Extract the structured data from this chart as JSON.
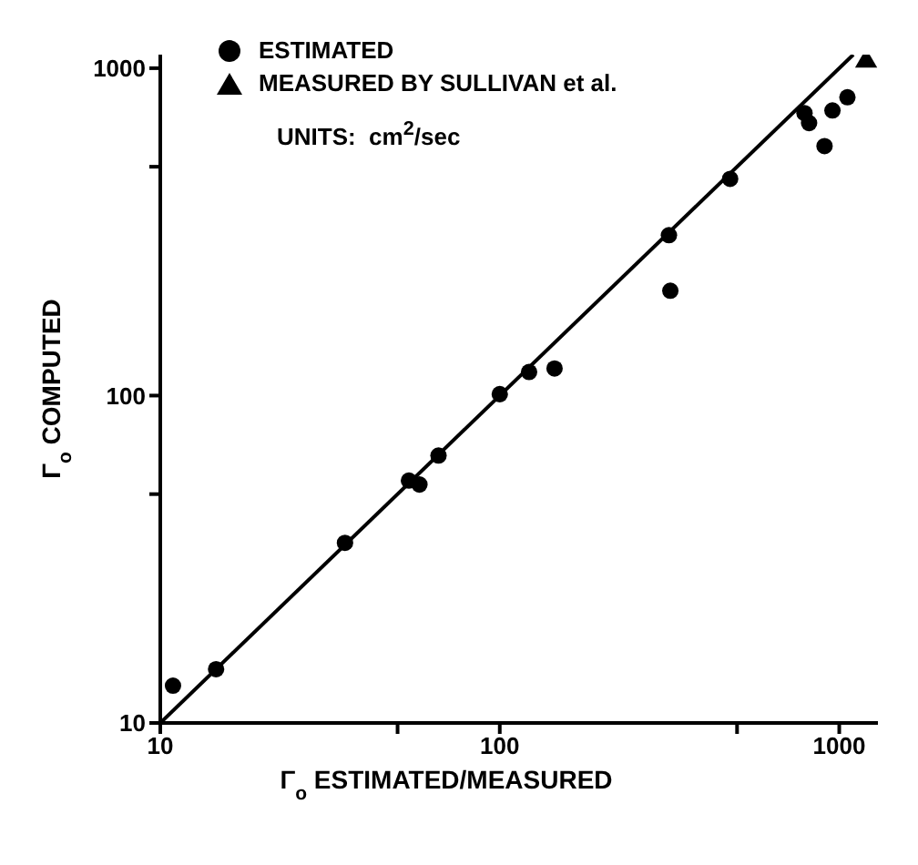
{
  "chart_data": {
    "type": "scatter",
    "xlabel": "Γ$_{o}$ ESTIMATED/MEASURED",
    "ylabel": "Γ$_{o}$ COMPUTED",
    "log": "xy",
    "legend": "top left",
    "xlim": [
      10,
      1300
    ],
    "ylim": [
      10,
      1100
    ],
    "xticks": [
      10,
      {
        "value": 50,
        "label": null
      },
      100,
      {
        "value": 500,
        "label": null
      },
      1000
    ],
    "yticks": [
      10,
      {
        "value": 50,
        "label": null
      },
      100,
      {
        "value": 500,
        "label": null
      },
      1000
    ],
    "annotations": [
      "UNITS:  cm$^{2}$/sec"
    ],
    "series": [
      {
        "name": "ESTIMATED",
        "color": "#000000",
        "marker": "circle",
        "x": [
          10.9,
          14.6,
          35,
          54,
          58,
          66,
          100,
          122,
          145,
          315,
          318,
          477,
          790,
          815,
          905,
          955,
          1057
        ],
        "values": [
          13,
          14.6,
          35.5,
          55,
          53.5,
          65.6,
          101,
          118,
          121,
          309,
          209,
          459,
          729,
          680,
          578,
          743,
          815
        ]
      },
      {
        "name": "MEASURED BY SULLIVAN et al.",
        "color": "#000000",
        "marker": "triangle",
        "x": [
          1200
        ],
        "values": [
          1050
        ]
      },
      {
        "type": "line",
        "color": "#000000",
        "marker": "none",
        "line_style": "solid",
        "x": [
          10,
          1100
        ],
        "values": [
          10,
          1100
        ]
      }
    ]
  }
}
